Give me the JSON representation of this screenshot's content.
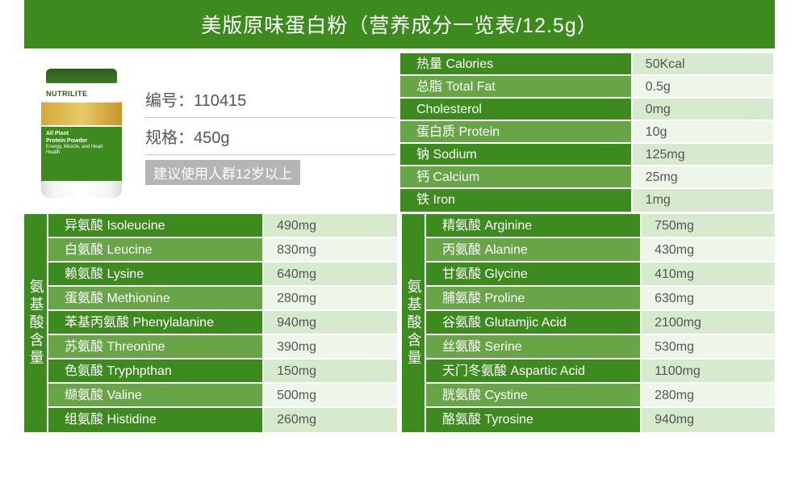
{
  "title": "美版原味蛋白粉（营养成分一览表/12.5g）",
  "product": {
    "brand": "NUTRILITE",
    "name_line1": "All Plant",
    "name_line2": "Protein Powder",
    "tagline": "Energy, Muscle, and Heart Health",
    "code_label": "编号：",
    "code_value": "110415",
    "spec_label": "规格：",
    "spec_value": "450g",
    "age_note": "建议使用人群12岁以上"
  },
  "nutrition": [
    {
      "label": "热量 Calories",
      "value": "50Kcal",
      "shade": "dark"
    },
    {
      "label": "总脂 Total Fat",
      "value": "0.5g",
      "shade": "light"
    },
    {
      "label": "Cholesterol",
      "value": "0mg",
      "shade": "dark"
    },
    {
      "label": "蛋白质 Protein",
      "value": "10g",
      "shade": "light"
    },
    {
      "label": "钠 Sodium",
      "value": "125mg",
      "shade": "dark"
    },
    {
      "label": "钙 Calcium",
      "value": "25mg",
      "shade": "light"
    },
    {
      "label": "铁 Iron",
      "value": "1mg",
      "shade": "dark"
    }
  ],
  "amino_label": "氨基酸含量",
  "amino_left": [
    {
      "label": "异氨酸 Isoleucine",
      "value": "490mg",
      "shade": "dark"
    },
    {
      "label": "白氨酸 Leucine",
      "value": "830mg",
      "shade": "light"
    },
    {
      "label": "赖氨酸 Lysine",
      "value": "640mg",
      "shade": "dark"
    },
    {
      "label": "蛋氨酸 Methionine",
      "value": "280mg",
      "shade": "light"
    },
    {
      "label": "苯基丙氨酸 Phenylalanine",
      "value": "940mg",
      "shade": "dark"
    },
    {
      "label": "苏氨酸 Threonine",
      "value": "390mg",
      "shade": "light"
    },
    {
      "label": "色氨酸 Tryphpthan",
      "value": "150mg",
      "shade": "dark"
    },
    {
      "label": "缬氨酸 Valine",
      "value": "500mg",
      "shade": "light"
    },
    {
      "label": "组氨酸 Histidine",
      "value": "260mg",
      "shade": "dark"
    }
  ],
  "amino_right": [
    {
      "label": "精氨酸 Arginine",
      "value": "750mg",
      "shade": "dark"
    },
    {
      "label": "丙氨酸 Alanine",
      "value": "430mg",
      "shade": "light"
    },
    {
      "label": "甘氨酸 Glycine",
      "value": "410mg",
      "shade": "dark"
    },
    {
      "label": "脯氨酸 Proline",
      "value": "630mg",
      "shade": "light"
    },
    {
      "label": "谷氨酸 Glutamjic Acid",
      "value": "2100mg",
      "shade": "dark"
    },
    {
      "label": "丝氨酸 Serine",
      "value": "530mg",
      "shade": "light"
    },
    {
      "label": "天门冬氨酸 Aspartic Acid",
      "value": "1100mg",
      "shade": "dark"
    },
    {
      "label": "胱氨酸 Cystine",
      "value": "280mg",
      "shade": "light"
    },
    {
      "label": "酪氨酸 Tyrosine",
      "value": "940mg",
      "shade": "dark"
    }
  ]
}
